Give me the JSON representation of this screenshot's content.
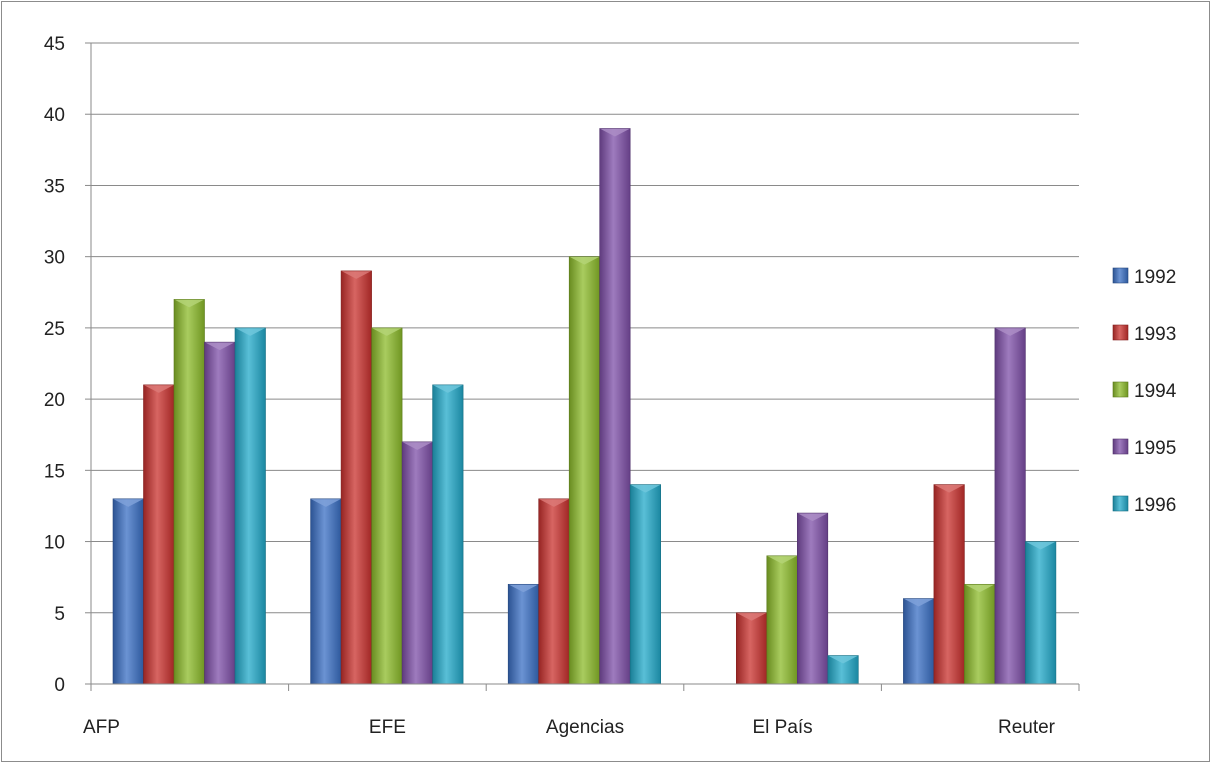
{
  "chart_data": {
    "type": "bar",
    "categories": [
      "AFP",
      "EFE",
      "Agencias",
      "El País",
      "Reuter"
    ],
    "series": [
      {
        "name": "1992",
        "color": "#3a6fc4",
        "values": [
          13,
          13,
          7,
          0,
          6
        ]
      },
      {
        "name": "1993",
        "color": "#c9312e",
        "values": [
          21,
          29,
          13,
          5,
          14
        ]
      },
      {
        "name": "1994",
        "color": "#8cbb2a",
        "values": [
          27,
          25,
          30,
          9,
          7
        ]
      },
      {
        "name": "1995",
        "color": "#7e4fa8",
        "values": [
          24,
          17,
          39,
          12,
          25
        ]
      },
      {
        "name": "1996",
        "color": "#22a9c9",
        "values": [
          25,
          21,
          14,
          2,
          10
        ]
      }
    ],
    "ylim": [
      0,
      45
    ],
    "yticks": [
      0,
      5,
      10,
      15,
      20,
      25,
      30,
      35,
      40,
      45
    ],
    "grid": true,
    "legend": "right"
  }
}
